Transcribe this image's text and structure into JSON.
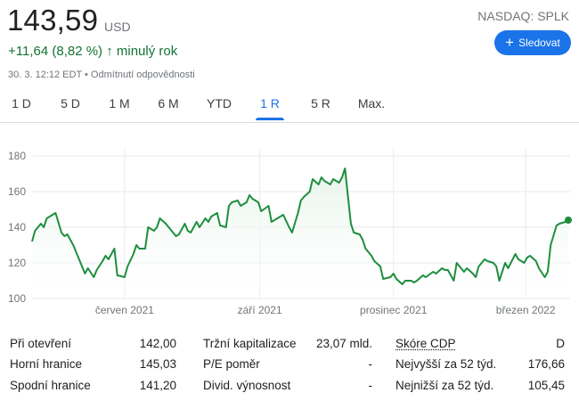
{
  "header": {
    "price": "143,59",
    "currency": "USD",
    "ticker": "NASDAQ: SPLK",
    "change": "+11,64 (8,82 %)",
    "change_arrow": "↑",
    "period": "minulý rok",
    "meta": "30. 3. 12:12 EDT • Odmítnutí odpovědnosti",
    "follow_label": "Sledovat",
    "follow_icon": "plus-icon"
  },
  "tabs": [
    "1 D",
    "5 D",
    "1 M",
    "6 M",
    "YTD",
    "1 R",
    "5 R",
    "Max."
  ],
  "active_tab": "1 R",
  "colors": {
    "line": "#1e8e3e",
    "fill": "#e6f4ea",
    "accent": "#1a73e8",
    "grid": "#e8eaed",
    "up": "#137333"
  },
  "chart_data": {
    "type": "area",
    "ylim": [
      100,
      180
    ],
    "yticks": [
      "100",
      "120",
      "140",
      "160",
      "180"
    ],
    "xticks": [
      "červen 2021",
      "září 2021",
      "prosinec 2021",
      "březen 2022"
    ],
    "xtick_dates": [
      "2021-06-01",
      "2021-09-01",
      "2021-12-01",
      "2022-03-01"
    ],
    "x_range": [
      "2021-03-30",
      "2022-03-30"
    ],
    "grid": true,
    "last_point_marker": true,
    "series": [
      {
        "x": [
          "2021-03-30",
          "2021-04-01",
          "2021-04-05",
          "2021-04-07",
          "2021-04-09",
          "2021-04-13",
          "2021-04-15",
          "2021-04-19",
          "2021-04-21",
          "2021-04-23",
          "2021-04-27",
          "2021-04-29",
          "2021-05-03",
          "2021-05-05",
          "2021-05-07",
          "2021-05-11",
          "2021-05-13",
          "2021-05-17",
          "2021-05-19",
          "2021-05-21",
          "2021-05-25",
          "2021-05-27",
          "2021-06-01",
          "2021-06-03",
          "2021-06-07",
          "2021-06-09",
          "2021-06-11",
          "2021-06-15",
          "2021-06-17",
          "2021-06-21",
          "2021-06-23",
          "2021-06-25",
          "2021-06-29",
          "2021-07-01",
          "2021-07-06",
          "2021-07-08",
          "2021-07-12",
          "2021-07-14",
          "2021-07-16",
          "2021-07-20",
          "2021-07-22",
          "2021-07-26",
          "2021-07-28",
          "2021-07-30",
          "2021-08-03",
          "2021-08-05",
          "2021-08-09",
          "2021-08-11",
          "2021-08-13",
          "2021-08-17",
          "2021-08-19",
          "2021-08-23",
          "2021-08-25",
          "2021-08-27",
          "2021-08-31",
          "2021-09-02",
          "2021-09-07",
          "2021-09-09",
          "2021-09-13",
          "2021-09-15",
          "2021-09-17",
          "2021-09-21",
          "2021-09-23",
          "2021-09-27",
          "2021-09-29",
          "2021-10-01",
          "2021-10-05",
          "2021-10-07",
          "2021-10-11",
          "2021-10-13",
          "2021-10-15",
          "2021-10-19",
          "2021-10-21",
          "2021-10-25",
          "2021-10-27",
          "2021-10-29",
          "2021-11-02",
          "2021-11-04",
          "2021-11-08",
          "2021-11-10",
          "2021-11-12",
          "2021-11-16",
          "2021-11-18",
          "2021-11-22",
          "2021-11-24",
          "2021-11-29",
          "2021-12-01",
          "2021-12-03",
          "2021-12-07",
          "2021-12-09",
          "2021-12-13",
          "2021-12-15",
          "2021-12-17",
          "2021-12-21",
          "2021-12-23",
          "2021-12-28",
          "2021-12-30",
          "2022-01-03",
          "2022-01-05",
          "2022-01-07",
          "2022-01-11",
          "2022-01-13",
          "2022-01-18",
          "2022-01-20",
          "2022-01-24",
          "2022-01-26",
          "2022-01-28",
          "2022-02-01",
          "2022-02-03",
          "2022-02-07",
          "2022-02-09",
          "2022-02-11",
          "2022-02-15",
          "2022-02-17",
          "2022-02-22",
          "2022-02-24",
          "2022-02-28",
          "2022-03-02",
          "2022-03-04",
          "2022-03-08",
          "2022-03-10",
          "2022-03-14",
          "2022-03-16",
          "2022-03-18",
          "2022-03-22",
          "2022-03-24",
          "2022-03-28",
          "2022-03-30"
        ],
        "y": [
          132,
          138,
          142,
          140,
          145,
          147,
          148,
          137,
          135,
          136,
          130,
          126,
          118,
          114,
          117,
          112,
          116,
          121,
          124,
          122,
          128,
          113,
          112,
          118,
          125,
          130,
          128,
          128,
          140,
          138,
          140,
          145,
          142,
          140,
          135,
          136,
          142,
          138,
          137,
          143,
          140,
          145,
          143,
          146,
          148,
          141,
          140,
          152,
          154,
          155,
          152,
          154,
          158,
          156,
          154,
          149,
          152,
          143,
          145,
          146,
          147,
          140,
          137,
          148,
          155,
          157,
          160,
          167,
          164,
          168,
          166,
          164,
          167,
          165,
          168,
          173,
          142,
          137,
          136,
          133,
          128,
          124,
          121,
          118,
          111,
          112,
          114,
          111,
          108,
          110,
          110,
          109,
          110,
          113,
          112,
          115,
          114,
          117,
          116,
          116,
          110,
          120,
          115,
          117,
          114,
          112,
          118,
          122,
          121,
          120,
          118,
          110,
          120,
          117,
          125,
          122,
          120,
          123,
          124,
          121,
          117,
          112,
          115,
          130,
          141,
          142,
          143,
          144
        ]
      }
    ]
  },
  "stats": [
    [
      {
        "label": "Při otevření",
        "value": "142,00"
      },
      {
        "label": "Tržní kapitalizace",
        "value": "23,07 mld."
      },
      {
        "label": "Skóre CDP",
        "value": "D"
      }
    ],
    [
      {
        "label": "Horní hranice",
        "value": "145,03"
      },
      {
        "label": "P/E poměr",
        "value": "-"
      },
      {
        "label": "Nejvyšší za 52 týd.",
        "value": "176,66"
      }
    ],
    [
      {
        "label": "Spodní hranice",
        "value": "141,20"
      },
      {
        "label": "Divid. výnosnost",
        "value": "-"
      },
      {
        "label": "Nejnižší za 52 týd.",
        "value": "105,45"
      }
    ]
  ]
}
